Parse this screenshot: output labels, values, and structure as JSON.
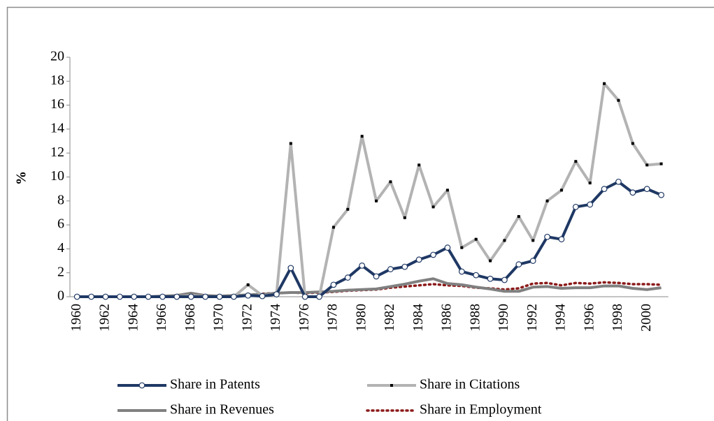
{
  "chart_data": {
    "type": "line",
    "ylabel": "%",
    "categories": [
      "1960",
      null,
      "1962",
      null,
      "1964",
      null,
      "1966",
      null,
      "1968",
      null,
      "1970",
      null,
      "1972",
      null,
      "1974",
      null,
      "1976",
      null,
      "1978",
      null,
      "1980",
      null,
      "1982",
      null,
      "1984",
      null,
      "1986",
      null,
      "1988",
      null,
      "1990",
      null,
      "1992",
      null,
      "1994",
      null,
      "1996",
      null,
      "1998",
      null,
      "2000",
      null
    ],
    "ylim": [
      0,
      20
    ],
    "yticks": [
      0,
      2,
      4,
      6,
      8,
      10,
      12,
      14,
      16,
      18,
      20
    ],
    "grid": false,
    "legend": "bottom",
    "series": [
      {
        "name": "Share in Patents",
        "color": "#1f3864",
        "marker": "circle",
        "dash": "solid",
        "values": [
          0,
          0,
          0,
          0,
          0,
          0,
          0,
          0,
          0,
          0,
          0,
          0,
          0.1,
          0.05,
          0.2,
          2.4,
          0,
          0,
          1.0,
          1.6,
          2.6,
          1.7,
          2.3,
          2.5,
          3.1,
          3.5,
          4.1,
          2.1,
          1.8,
          1.5,
          1.4,
          2.7,
          3.0,
          5.0,
          4.8,
          7.5,
          7.7,
          9.0,
          9.6,
          8.7,
          9.0,
          8.5
        ]
      },
      {
        "name": "Share in Citations",
        "color": "#b3b3b3",
        "marker": "square",
        "dash": "solid",
        "values": [
          0,
          0,
          0,
          0,
          0,
          0,
          0,
          0,
          0.1,
          0,
          0,
          0,
          1.0,
          0.1,
          0.2,
          12.8,
          0,
          0,
          5.8,
          7.3,
          13.4,
          8.0,
          9.6,
          6.6,
          11.0,
          7.5,
          8.9,
          4.1,
          4.8,
          3.0,
          4.7,
          6.7,
          4.7,
          8.0,
          8.9,
          11.3,
          9.5,
          17.8,
          16.4,
          12.8,
          11.0,
          11.1
        ]
      },
      {
        "name": "Share in Revenues",
        "color": "#808080",
        "marker": "none",
        "dash": "solid",
        "values": [
          0,
          0,
          0,
          0,
          0,
          0,
          0.05,
          0.1,
          0.3,
          0.1,
          0.05,
          0.1,
          0.15,
          0.2,
          0.3,
          0.35,
          0.35,
          0.4,
          0.45,
          0.55,
          0.6,
          0.65,
          0.85,
          1.05,
          1.3,
          1.5,
          1.1,
          1.0,
          0.8,
          0.65,
          0.45,
          0.45,
          0.8,
          0.85,
          0.7,
          0.75,
          0.75,
          0.9,
          0.9,
          0.7,
          0.6,
          0.75
        ]
      },
      {
        "name": "Share in Employment",
        "color": "#8b1a1a",
        "marker": "none",
        "dash": "dot",
        "values": [
          0,
          0,
          0,
          0,
          0,
          0,
          0.05,
          0.05,
          0.15,
          0.1,
          0.05,
          0.1,
          0.15,
          0.25,
          0.3,
          0.35,
          0.3,
          0.35,
          0.4,
          0.5,
          0.55,
          0.6,
          0.75,
          0.85,
          0.95,
          1.05,
          0.95,
          0.9,
          0.75,
          0.7,
          0.6,
          0.7,
          1.1,
          1.15,
          0.95,
          1.15,
          1.1,
          1.2,
          1.15,
          1.05,
          1.05,
          1.0
        ]
      }
    ]
  }
}
